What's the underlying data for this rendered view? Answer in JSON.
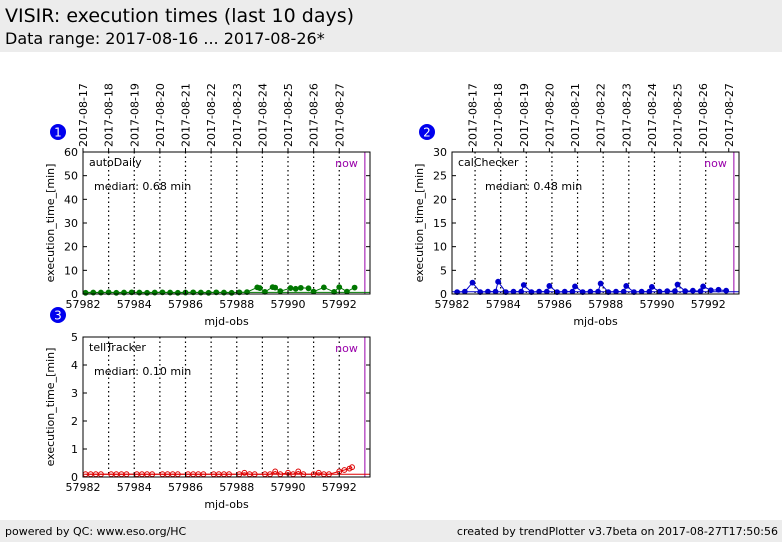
{
  "header": {
    "title": "VISIR: execution times (last 10 days)",
    "subtitle": "Data range: 2017-08-16 ... 2017-08-26*"
  },
  "footer": {
    "left": "powered by QC: www.eso.org/HC",
    "right": "created by trendPlotter v3.7beta on 2017-08-27T17:50:56"
  },
  "colors": {
    "now_line": "#9900aa",
    "vertical_markers": "#000000"
  },
  "chart_data": [
    {
      "type": "scatter",
      "badge": "1",
      "panel_label": "autoDaily",
      "median_text": "median: 0.68 min",
      "now_label": "now",
      "color": "#007700",
      "xlabel": "mjd-obs",
      "ylabel": "execution_time_[min]",
      "xlim": [
        57982,
        57993.2
      ],
      "ylim": [
        0,
        60
      ],
      "xticks": [
        57982,
        57984,
        57986,
        57988,
        57990,
        57992
      ],
      "yticks": [
        0,
        10,
        20,
        30,
        40,
        50,
        60
      ],
      "date_ticks": [
        {
          "label": "2017-08-17",
          "mjd": 57982.0
        },
        {
          "label": "2017-08-18",
          "mjd": 57983.0
        },
        {
          "label": "2017-08-19",
          "mjd": 57984.0
        },
        {
          "label": "2017-08-20",
          "mjd": 57985.0
        },
        {
          "label": "2017-08-21",
          "mjd": 57986.0
        },
        {
          "label": "2017-08-22",
          "mjd": 57987.0
        },
        {
          "label": "2017-08-23",
          "mjd": 57988.0
        },
        {
          "label": "2017-08-24",
          "mjd": 57989.0
        },
        {
          "label": "2017-08-25",
          "mjd": 57990.0
        },
        {
          "label": "2017-08-26",
          "mjd": 57991.0
        },
        {
          "label": "2017-08-27",
          "mjd": 57992.0
        }
      ],
      "date_lines": [
        57983.0,
        57984.0,
        57985.0,
        57986.0,
        57987.0,
        57988.0,
        57989.0,
        57990.0,
        57991.0,
        57992.0
      ],
      "now_mjd": 57993.0,
      "median": 0.68,
      "x": [
        57982.1,
        57982.4,
        57982.7,
        57983.0,
        57983.3,
        57983.6,
        57983.9,
        57984.2,
        57984.5,
        57984.8,
        57985.1,
        57985.4,
        57985.7,
        57986.0,
        57986.3,
        57986.6,
        57986.9,
        57987.2,
        57987.5,
        57987.8,
        57988.1,
        57988.4,
        57988.8,
        57988.9,
        57989.1,
        57989.4,
        57989.5,
        57989.7,
        57990.1,
        57990.3,
        57990.5,
        57990.8,
        57991.0,
        57991.4,
        57991.8,
        57992.0,
        57992.3,
        57992.6
      ],
      "y": [
        0.5,
        0.6,
        0.6,
        0.7,
        0.5,
        0.6,
        0.7,
        0.6,
        0.5,
        0.6,
        0.7,
        0.6,
        0.5,
        0.6,
        0.7,
        0.6,
        0.5,
        0.7,
        0.6,
        0.5,
        0.7,
        0.8,
        2.8,
        2.5,
        0.9,
        2.9,
        2.7,
        1.2,
        2.5,
        2.2,
        2.6,
        2.4,
        1.0,
        2.8,
        0.9,
        2.9,
        1.0,
        2.7
      ]
    },
    {
      "type": "scatter",
      "badge": "2",
      "panel_label": "calChecker",
      "median_text": "median: 0.48 min",
      "now_label": "now",
      "color": "#0000cc",
      "xlabel": "mjd-obs",
      "ylabel": "execution_time_[min]",
      "xlim": [
        57982,
        57993.2
      ],
      "ylim": [
        0,
        30
      ],
      "xticks": [
        57982,
        57984,
        57986,
        57988,
        57990,
        57992
      ],
      "yticks": [
        0,
        5,
        10,
        15,
        20,
        25,
        30
      ],
      "date_ticks": [
        {
          "label": "2017-08-17",
          "mjd": 57982.8
        },
        {
          "label": "2017-08-18",
          "mjd": 57983.8
        },
        {
          "label": "2017-08-19",
          "mjd": 57984.8
        },
        {
          "label": "2017-08-20",
          "mjd": 57985.8
        },
        {
          "label": "2017-08-21",
          "mjd": 57986.8
        },
        {
          "label": "2017-08-22",
          "mjd": 57987.8
        },
        {
          "label": "2017-08-23",
          "mjd": 57988.8
        },
        {
          "label": "2017-08-24",
          "mjd": 57989.8
        },
        {
          "label": "2017-08-25",
          "mjd": 57990.8
        },
        {
          "label": "2017-08-26",
          "mjd": 57991.8
        },
        {
          "label": "2017-08-27",
          "mjd": 57992.8
        }
      ],
      "date_lines": [
        57982.9,
        57983.9,
        57984.9,
        57985.9,
        57986.9,
        57987.9,
        57988.9,
        57989.9,
        57990.9,
        57991.9
      ],
      "now_mjd": 57993.0,
      "median": 0.48,
      "x": [
        57982.2,
        57982.5,
        57982.8,
        57983.1,
        57983.4,
        57983.7,
        57983.8,
        57984.1,
        57984.4,
        57984.7,
        57984.8,
        57985.1,
        57985.4,
        57985.7,
        57985.8,
        57986.1,
        57986.4,
        57986.7,
        57986.8,
        57987.1,
        57987.4,
        57987.7,
        57987.8,
        57988.1,
        57988.4,
        57988.7,
        57988.8,
        57989.1,
        57989.4,
        57989.7,
        57989.8,
        57990.1,
        57990.4,
        57990.7,
        57990.8,
        57991.1,
        57991.4,
        57991.7,
        57991.8,
        57992.1,
        57992.4,
        57992.7
      ],
      "y": [
        0.4,
        0.5,
        2.4,
        0.4,
        0.5,
        0.5,
        2.6,
        0.4,
        0.5,
        0.5,
        1.9,
        0.4,
        0.5,
        0.5,
        1.7,
        0.4,
        0.5,
        0.5,
        1.6,
        0.4,
        0.5,
        0.5,
        2.2,
        0.4,
        0.5,
        0.5,
        1.7,
        0.4,
        0.5,
        0.5,
        1.5,
        0.5,
        0.6,
        0.6,
        2.0,
        0.6,
        0.7,
        0.6,
        1.6,
        0.8,
        0.9,
        0.7
      ]
    },
    {
      "type": "scatter",
      "badge": "3",
      "panel_label": "tellTracker",
      "median_text": "median: 0.10 min",
      "now_label": "now",
      "color": "#dd0000",
      "xlabel": "mjd-obs",
      "ylabel": "execution_time_[min]",
      "xlim": [
        57982,
        57993.2
      ],
      "ylim": [
        0,
        5
      ],
      "xticks": [
        57982,
        57984,
        57986,
        57988,
        57990,
        57992
      ],
      "yticks": [
        0,
        1,
        2,
        3,
        4,
        5
      ],
      "date_ticks": [],
      "date_lines": [
        57983.0,
        57984.0,
        57985.0,
        57986.0,
        57987.0,
        57988.0,
        57989.0,
        57990.0,
        57991.0,
        57992.0
      ],
      "now_mjd": 57993.0,
      "median": 0.1,
      "x": [
        57982.1,
        57982.3,
        57982.5,
        57982.7,
        57983.1,
        57983.3,
        57983.5,
        57983.7,
        57984.1,
        57984.3,
        57984.5,
        57984.7,
        57985.1,
        57985.3,
        57985.5,
        57985.7,
        57986.1,
        57986.3,
        57986.5,
        57986.7,
        57987.1,
        57987.3,
        57987.5,
        57987.7,
        57988.1,
        57988.3,
        57988.5,
        57988.7,
        57989.1,
        57989.3,
        57989.5,
        57989.7,
        57990.0,
        57990.2,
        57990.4,
        57990.6,
        57991.0,
        57991.2,
        57991.4,
        57991.6,
        57992.0,
        57992.2,
        57992.4,
        57992.5
      ],
      "y": [
        0.1,
        0.1,
        0.1,
        0.1,
        0.1,
        0.1,
        0.1,
        0.1,
        0.1,
        0.1,
        0.1,
        0.1,
        0.1,
        0.1,
        0.1,
        0.1,
        0.1,
        0.1,
        0.1,
        0.1,
        0.1,
        0.1,
        0.1,
        0.1,
        0.1,
        0.15,
        0.1,
        0.1,
        0.1,
        0.1,
        0.2,
        0.1,
        0.15,
        0.1,
        0.2,
        0.1,
        0.1,
        0.15,
        0.1,
        0.1,
        0.2,
        0.25,
        0.3,
        0.35
      ]
    }
  ]
}
